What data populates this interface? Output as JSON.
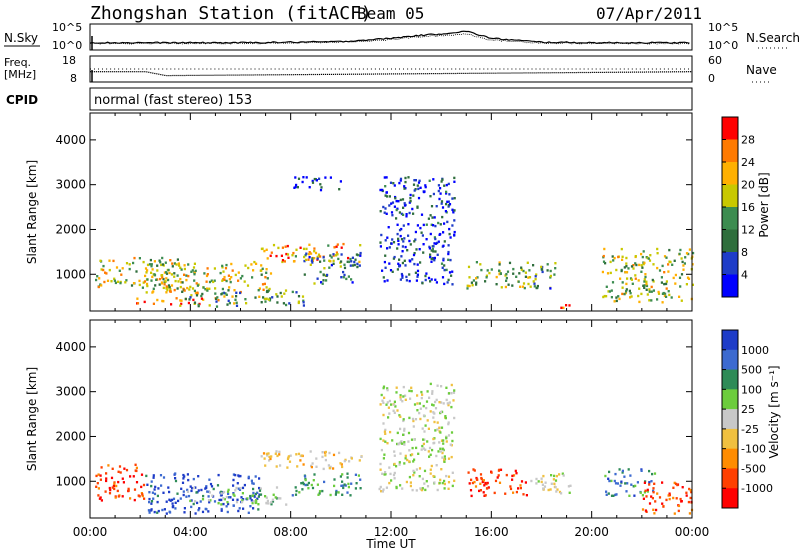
{
  "header": {
    "station": "Zhongshan Station (fitACF)",
    "beam": "Beam 05",
    "date": "07/Apr/2011",
    "cpid_label": "CPID",
    "cpid_text": "normal (fast stereo) 153"
  },
  "strip_noise": {
    "left_label": "N.Sky",
    "right_label": "N.Search",
    "left_ticks": [
      "10^5",
      "10^0"
    ],
    "right_ticks": [
      "10^5",
      "10^0"
    ]
  },
  "strip_freq": {
    "left_label_1": "Freq.",
    "left_label_2": "[MHz]",
    "right_label": "Nave",
    "left_ticks": [
      "18",
      "8"
    ],
    "right_ticks": [
      "60",
      "0"
    ]
  },
  "chart_data": [
    {
      "type": "heatmap",
      "name": "power",
      "ylabel": "Slant Range [km]",
      "xlabel": "Time UT",
      "ylim": [
        180,
        4600
      ],
      "xlim": [
        0,
        24
      ],
      "x_tick_labels": [
        "00:00",
        "04:00",
        "08:00",
        "12:00",
        "16:00",
        "20:00",
        "00:00"
      ],
      "y_ticks": [
        1000,
        2000,
        3000,
        4000
      ],
      "colorbar": {
        "label": "Power [dB]",
        "ticks": [
          "28",
          "24",
          "20",
          "16",
          "12",
          "8",
          "4"
        ],
        "colors": [
          "#ff0000",
          "#ff7a00",
          "#ffb000",
          "#c8c800",
          "#3c8c50",
          "#2f6e3c",
          "#1e3cc8",
          "#0000ff"
        ]
      },
      "blobs": [
        [
          0.2,
          3.6,
          700,
          1400,
          0.55
        ],
        [
          1.8,
          5.2,
          350,
          500,
          0.95
        ],
        [
          2.2,
          7.2,
          600,
          1300,
          0.6
        ],
        [
          3.5,
          8.5,
          300,
          700,
          0.4
        ],
        [
          6.8,
          10.8,
          1300,
          1700,
          0.75
        ],
        [
          8.5,
          10.8,
          800,
          1500,
          0.3
        ],
        [
          15.0,
          17.5,
          700,
          1300,
          0.5
        ],
        [
          17.5,
          18.6,
          700,
          1300,
          0.35
        ],
        [
          18.2,
          19.2,
          250,
          350,
          0.8
        ],
        [
          20.4,
          24.0,
          400,
          1600,
          0.55
        ],
        [
          11.5,
          14.5,
          800,
          3200,
          0.1
        ],
        [
          8.0,
          10.0,
          2900,
          3200,
          0.1
        ]
      ]
    },
    {
      "type": "heatmap",
      "name": "velocity",
      "ylabel": "Slant Range [km]",
      "xlabel": "Time UT",
      "ylim": [
        180,
        4600
      ],
      "xlim": [
        0,
        24
      ],
      "x_tick_labels": [
        "00:00",
        "04:00",
        "08:00",
        "12:00",
        "16:00",
        "20:00",
        "00:00"
      ],
      "y_ticks": [
        1000,
        2000,
        3000,
        4000
      ],
      "colorbar": {
        "label": "Velocity [m s⁻¹]",
        "ticks": [
          "1000",
          "500",
          "100",
          "25",
          "-25",
          "-100",
          "-500",
          "-1000"
        ],
        "colors": [
          "#1e3cc8",
          "#3c6ad0",
          "#2e8b57",
          "#6ccc3c",
          "#c8c8c8",
          "#f0c040",
          "#ff8c00",
          "#ff4000",
          "#ff0000"
        ]
      },
      "blobs": [
        [
          0.2,
          2.2,
          600,
          1400,
          -0.8
        ],
        [
          2.2,
          6.8,
          300,
          1200,
          0.9
        ],
        [
          3.8,
          7.8,
          500,
          900,
          0.2
        ],
        [
          6.8,
          10.8,
          1300,
          1700,
          -0.2
        ],
        [
          8.0,
          10.8,
          700,
          1200,
          0.5
        ],
        [
          15.0,
          17.5,
          700,
          1300,
          -0.8
        ],
        [
          17.5,
          19.2,
          700,
          1200,
          0.0
        ],
        [
          20.5,
          22.5,
          700,
          1300,
          0.6
        ],
        [
          22.0,
          24.0,
          300,
          1000,
          -0.7
        ],
        [
          11.5,
          14.5,
          800,
          3200,
          0.05
        ]
      ]
    },
    {
      "type": "line",
      "name": "noise",
      "x": [
        0,
        2,
        4,
        6,
        8,
        10,
        12,
        13,
        14,
        15,
        16,
        18,
        20,
        22,
        24
      ],
      "series": [
        {
          "values": [
            0.28,
            0.28,
            0.28,
            0.28,
            0.3,
            0.32,
            0.45,
            0.55,
            0.62,
            0.72,
            0.45,
            0.3,
            0.28,
            0.28,
            0.28
          ]
        },
        {
          "values": [
            0.25,
            0.25,
            0.25,
            0.25,
            0.27,
            0.3,
            0.4,
            0.5,
            0.55,
            0.62,
            0.38,
            0.27,
            0.25,
            0.25,
            0.25
          ]
        }
      ]
    },
    {
      "type": "line",
      "name": "freq_nave",
      "x": [
        0,
        2.2,
        3.0,
        24
      ],
      "series": [
        {
          "name": "Freq.",
          "values": [
            12,
            12,
            10.5,
            12
          ]
        },
        {
          "name": "Nave",
          "values": [
            30,
            30,
            30,
            30
          ]
        }
      ]
    }
  ]
}
